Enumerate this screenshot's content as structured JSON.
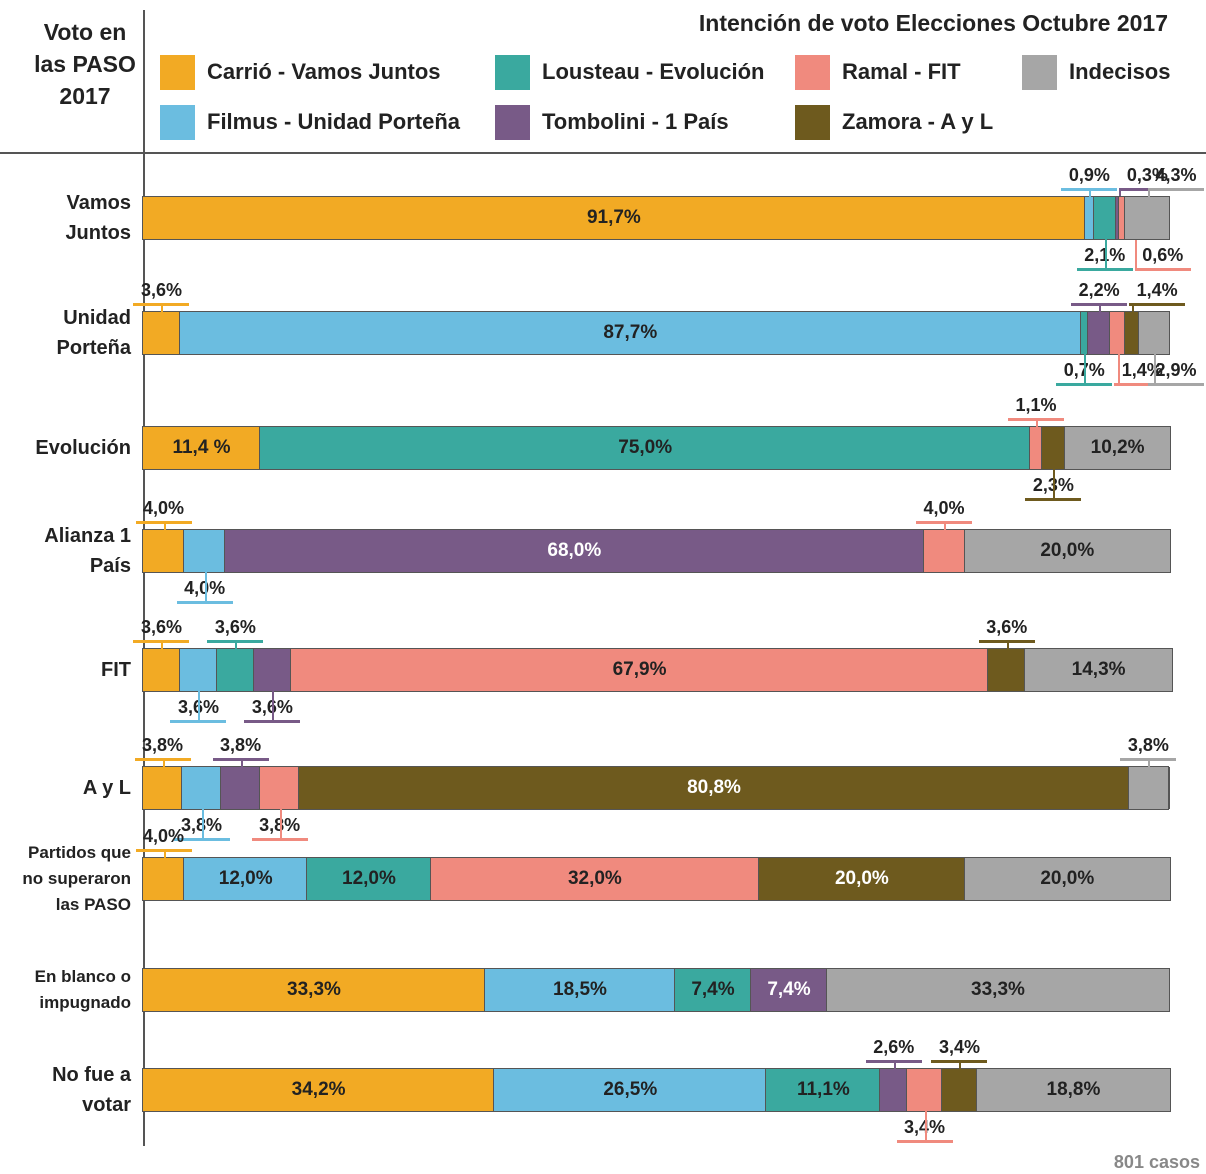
{
  "chart_data": {
    "type": "stacked-bar-horizontal",
    "title": "Intención de voto Elecciones Octubre 2017",
    "row_header": "Voto en las PASO 2017",
    "note": "801 casos",
    "xlim": [
      0,
      100
    ],
    "categories": [
      "Vamos Juntos",
      "Unidad Porteña",
      "Evolución",
      "Alianza 1 País",
      "FIT",
      "A y L",
      "Partidos que no superaron las PASO",
      "En blanco o impugnado",
      "No fue a votar"
    ],
    "series": [
      {
        "name": "Carrió - Vamos Juntos",
        "color": "#f2aa24",
        "values": [
          91.7,
          3.6,
          11.4,
          4.0,
          3.6,
          3.8,
          4.0,
          33.3,
          34.2
        ],
        "value_labels": [
          "91,7%",
          "3,6%",
          "11,4 %",
          "4,0%",
          "3,6%",
          "3,8%",
          "4,0%",
          "33,3%",
          "34,2%"
        ]
      },
      {
        "name": "Filmus - Unidad Porteña",
        "color": "#6bbde0",
        "values": [
          0.9,
          87.7,
          null,
          4.0,
          3.6,
          3.8,
          12.0,
          18.5,
          26.5
        ],
        "value_labels": [
          "0,9%",
          "87,7%",
          null,
          "4,0%",
          "3,6%",
          "3,8%",
          "12,0%",
          "18,5%",
          "26,5%"
        ]
      },
      {
        "name": "Lousteau - Evolución",
        "color": "#3aa99f",
        "values": [
          2.1,
          0.7,
          75.0,
          null,
          3.6,
          null,
          12.0,
          7.4,
          11.1
        ],
        "value_labels": [
          "2,1%",
          "0,7%",
          "75,0%",
          null,
          "3,6%",
          null,
          "12,0%",
          "7,4%",
          "11,1%"
        ]
      },
      {
        "name": "Tombolini - 1 País",
        "color": "#785a87",
        "values": [
          0.3,
          2.2,
          null,
          68.0,
          3.6,
          3.8,
          null,
          7.4,
          2.6
        ],
        "value_labels": [
          "0,3%",
          "2,2%",
          null,
          "68,0%",
          "3,6%",
          "3,8%",
          null,
          "7,4%",
          "2,6%"
        ]
      },
      {
        "name": "Ramal - FIT",
        "color": "#f08a7e",
        "values": [
          0.6,
          1.4,
          1.1,
          4.0,
          67.9,
          3.8,
          32.0,
          null,
          3.4
        ],
        "value_labels": [
          "0,6%",
          "1,4%",
          "1,1%",
          "4,0%",
          "67,9%",
          "3,8%",
          "32,0%",
          null,
          "3,4%"
        ]
      },
      {
        "name": "Zamora - A y L",
        "color": "#6e5a1e",
        "values": [
          null,
          1.4,
          2.3,
          null,
          3.6,
          80.8,
          20.0,
          null,
          3.4
        ],
        "value_labels": [
          null,
          "1,4%",
          "2,3%",
          null,
          "3,6%",
          "80,8%",
          "20,0%",
          null,
          "3,4%"
        ]
      },
      {
        "name": "Indecisos",
        "color": "#a6a6a6",
        "values": [
          4.3,
          2.9,
          10.2,
          20.0,
          14.3,
          3.8,
          20.0,
          33.3,
          18.8
        ],
        "value_labels": [
          "4,3%",
          "2,9%",
          "10,2%",
          "20,0%",
          "14,3%",
          "3,8%",
          "20,0%",
          "33,3%",
          "18,8%"
        ]
      }
    ]
  }
}
